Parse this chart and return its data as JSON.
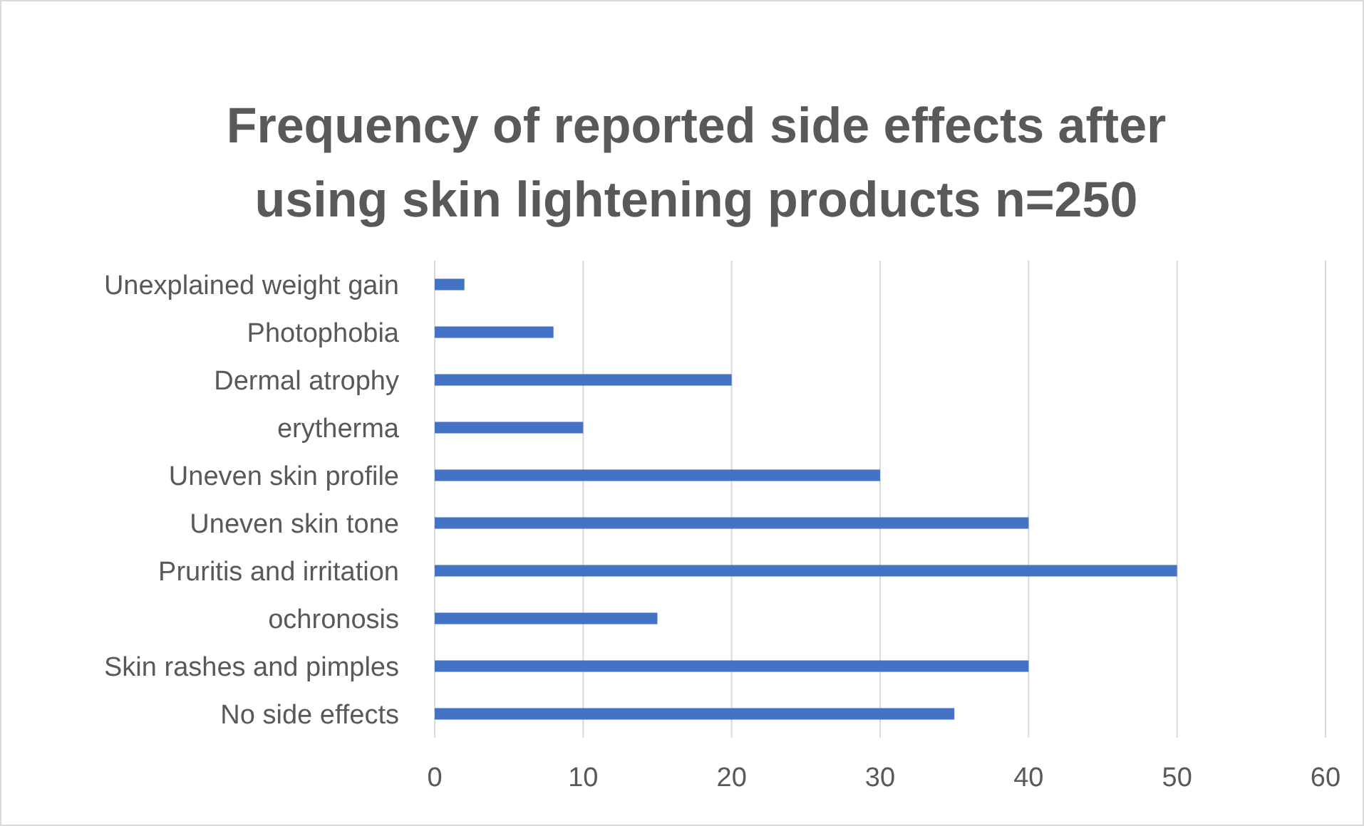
{
  "chart_data": {
    "type": "bar",
    "orientation": "horizontal",
    "title": "Frequency of reported side effects after using skin lightening products n=250",
    "categories": [
      "Unexplained weight gain",
      "Photophobia",
      "Dermal atrophy",
      "erytherma",
      "Uneven skin profile",
      "Uneven skin tone",
      "Pruritis and irritation",
      "ochronosis",
      "Skin rashes and pimples",
      "No side effects"
    ],
    "values": [
      2,
      8,
      20,
      10,
      30,
      40,
      50,
      15,
      40,
      35
    ],
    "color": "#4472c4",
    "xlim": [
      0,
      60
    ],
    "xticks": [
      0,
      10,
      20,
      30,
      40,
      50,
      60
    ],
    "grid": "x"
  }
}
